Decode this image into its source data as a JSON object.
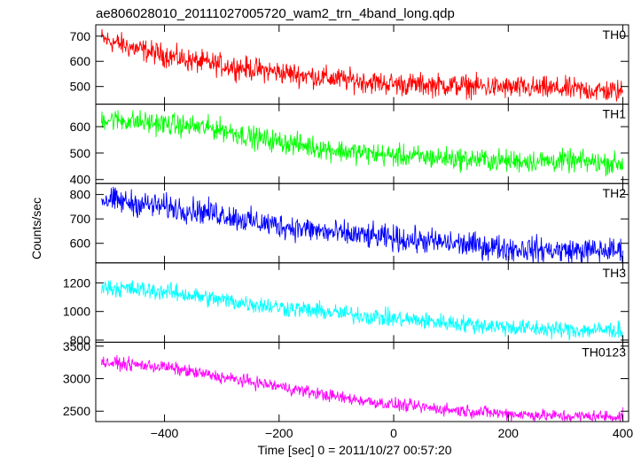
{
  "figure": {
    "title": "ae806028010_20111027005720_wam2_trn_4band_long.qdp",
    "xlabel": "Time [sec] 0 = 2011/10/27 00:57:20",
    "ylabel": "Counts/sec"
  },
  "chart_data": [
    {
      "type": "line",
      "name": "TH0",
      "color": "#ff0000",
      "xlim": [
        -520,
        410
      ],
      "ylim": [
        430,
        745
      ],
      "yticks": [
        500,
        600,
        700
      ],
      "ytick_labels": [
        "500",
        "600",
        "700"
      ],
      "trend": {
        "x": [
          -510,
          -450,
          -350,
          -250,
          -100,
          0,
          100,
          200,
          300,
          400
        ],
        "y": [
          690,
          650,
          600,
          570,
          530,
          510,
          505,
          495,
          490,
          480
        ]
      },
      "noise": 28
    },
    {
      "type": "line",
      "name": "TH1",
      "color": "#00ff00",
      "xlim": [
        -520,
        410
      ],
      "ylim": [
        385,
        685
      ],
      "yticks": [
        400,
        500,
        600
      ],
      "ytick_labels": [
        "400",
        "500",
        "600"
      ],
      "trend": {
        "x": [
          -510,
          -400,
          -300,
          -250,
          -100,
          0,
          100,
          200,
          300,
          400
        ],
        "y": [
          630,
          610,
          590,
          560,
          510,
          490,
          480,
          470,
          470,
          460
        ]
      },
      "noise": 26
    },
    {
      "type": "line",
      "name": "TH2",
      "color": "#0000ff",
      "xlim": [
        -520,
        410
      ],
      "ylim": [
        520,
        845
      ],
      "yticks": [
        600,
        700,
        800
      ],
      "ytick_labels": [
        "600",
        "700",
        "800"
      ],
      "trend": {
        "x": [
          -510,
          -400,
          -300,
          -250,
          -100,
          0,
          100,
          200,
          300,
          400
        ],
        "y": [
          780,
          750,
          720,
          690,
          640,
          620,
          600,
          580,
          570,
          570
        ]
      },
      "noise": 32
    },
    {
      "type": "line",
      "name": "TH3",
      "color": "#00ffff",
      "xlim": [
        -520,
        410
      ],
      "ylim": [
        785,
        1340
      ],
      "yticks": [
        800,
        1000,
        1200
      ],
      "ytick_labels": [
        "800",
        "1000",
        "1200"
      ],
      "trend": {
        "x": [
          -510,
          -400,
          -300,
          -200,
          -100,
          0,
          100,
          200,
          300,
          400
        ],
        "y": [
          1170,
          1140,
          1080,
          1030,
          990,
          950,
          920,
          890,
          870,
          870
        ]
      },
      "noise": 38
    },
    {
      "type": "line",
      "name": "TH0123",
      "color": "#ff00ff",
      "xlim": [
        -520,
        410
      ],
      "ylim": [
        2340,
        3560
      ],
      "yticks": [
        2500,
        3000,
        3500
      ],
      "ytick_labels": [
        "2500",
        "3000",
        "3500"
      ],
      "xticks": [
        -400,
        -200,
        0,
        200,
        400
      ],
      "xtick_labels": [
        "−400",
        "−200",
        "0",
        "200",
        "400"
      ],
      "trend": {
        "x": [
          -510,
          -400,
          -300,
          -200,
          -100,
          0,
          100,
          200,
          300,
          400
        ],
        "y": [
          3250,
          3180,
          3020,
          2880,
          2720,
          2600,
          2520,
          2460,
          2420,
          2420
        ]
      },
      "noise": 60
    }
  ]
}
